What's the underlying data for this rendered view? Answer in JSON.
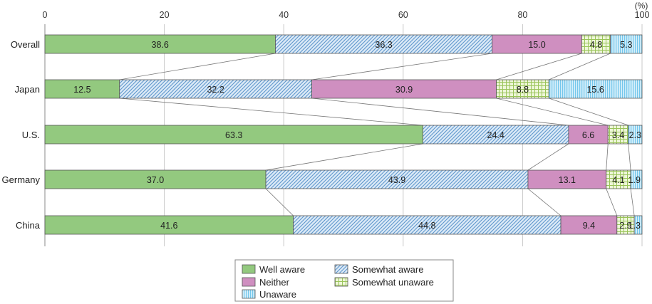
{
  "chart_data": {
    "type": "bar",
    "orientation": "horizontal",
    "stacked": true,
    "unit_label": "(%)",
    "xlim": [
      0,
      100
    ],
    "x_ticks": [
      "0",
      "20",
      "40",
      "60",
      "80",
      "100"
    ],
    "categories": [
      "Overall",
      "Japan",
      "U.S.",
      "Germany",
      "China"
    ],
    "series": [
      {
        "name": "Well aware",
        "color": "#93c97f",
        "pattern": "solid",
        "values": [
          38.6,
          12.5,
          63.3,
          37.0,
          41.6
        ],
        "labels": [
          "38.6",
          "12.5",
          "63.3",
          "37.0",
          "41.6"
        ]
      },
      {
        "name": "Somewhat aware",
        "color": "#7fb0dc",
        "pattern": "diagonal",
        "values": [
          36.3,
          32.2,
          24.4,
          43.9,
          44.8
        ],
        "labels": [
          "36.3",
          "32.2",
          "24.4",
          "43.9",
          "44.8"
        ]
      },
      {
        "name": "Neither",
        "color": "#cf8fc0",
        "pattern": "solid",
        "values": [
          15.0,
          30.9,
          6.6,
          13.1,
          9.4
        ],
        "labels": [
          "15.0",
          "30.9",
          "6.6",
          "13.1",
          "9.4"
        ]
      },
      {
        "name": "Somewhat unaware",
        "color": "#a8cf6e",
        "pattern": "grid",
        "values": [
          4.8,
          8.8,
          3.4,
          4.1,
          2.9
        ],
        "labels": [
          "4.8",
          "8.8",
          "3.4",
          "4.1",
          "2.9"
        ]
      },
      {
        "name": "Unaware",
        "color": "#6cc6ee",
        "pattern": "vertical",
        "values": [
          5.3,
          15.6,
          2.3,
          1.9,
          1.3
        ],
        "labels": [
          "5.3",
          "15.6",
          "2.3",
          "1.9",
          "1.3"
        ]
      }
    ],
    "legend_order": [
      "Well aware",
      "Somewhat aware",
      "Neither",
      "Somewhat unaware",
      "Unaware"
    ],
    "legend_position": "bottom-center",
    "grid": true,
    "connector_lines": true
  }
}
